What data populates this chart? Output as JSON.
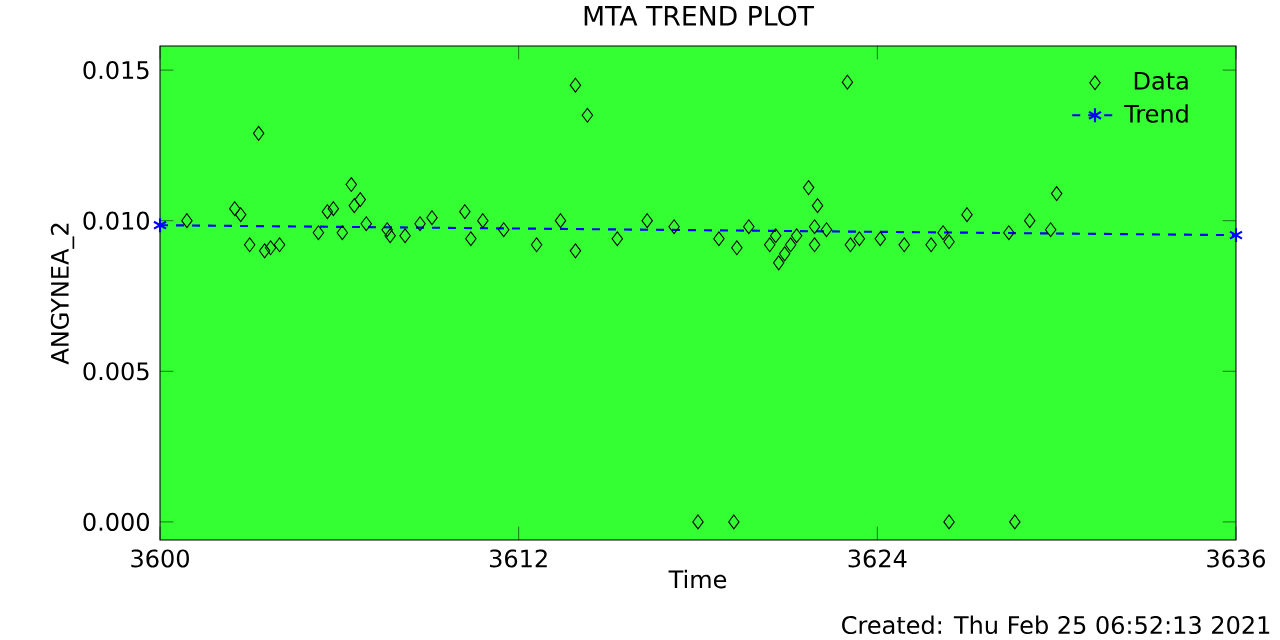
{
  "chart_data": {
    "type": "scatter",
    "title": "MTA TREND PLOT",
    "xlabel": "Time",
    "ylabel": "ANGYNEA_2",
    "annotations": [
      "Created: Thu Feb 25 06:52:13 2021"
    ],
    "xlim": [
      3600,
      3636
    ],
    "xticks": [
      3600,
      3612,
      3624,
      3636
    ],
    "ylim": [
      -0.0006,
      0.0158
    ],
    "yticks": [
      {
        "value": 0,
        "label": "0.000"
      },
      {
        "value": 0.005,
        "label": "0.005"
      },
      {
        "value": 0.01,
        "label": "0.010"
      },
      {
        "value": 0.015,
        "label": "0.015"
      }
    ],
    "legend": "top right",
    "series": [
      {
        "name": "Data",
        "marker": "diamond",
        "color": "#000000",
        "x": [
          3600.9,
          3602.5,
          3602.7,
          3603.0,
          3603.3,
          3603.5,
          3603.7,
          3604.0,
          3605.3,
          3605.6,
          3605.8,
          3606.1,
          3606.4,
          3606.5,
          3606.7,
          3606.9,
          3607.6,
          3607.7,
          3608.2,
          3608.7,
          3609.1,
          3610.2,
          3610.4,
          3610.8,
          3611.5,
          3612.6,
          3613.4,
          3613.9,
          3613.9,
          3614.3,
          3615.3,
          3616.3,
          3617.2,
          3618.0,
          3618.7,
          3619.2,
          3619.3,
          3619.7,
          3620.4,
          3620.6,
          3620.7,
          3620.9,
          3621.1,
          3621.3,
          3621.7,
          3622.0,
          3621.9,
          3621.9,
          3622.3,
          3623.0,
          3623.1,
          3623.4,
          3624.1,
          3624.9,
          3625.8,
          3626.2,
          3626.4,
          3626.4,
          3627.0,
          3628.4,
          3628.6,
          3629.1,
          3629.8,
          3630.0
        ],
        "values": [
          0.01,
          0.0104,
          0.0102,
          0.0092,
          0.0129,
          0.009,
          0.0091,
          0.0092,
          0.0096,
          0.0103,
          0.0104,
          0.0096,
          0.0112,
          0.0105,
          0.0107,
          0.0099,
          0.0097,
          0.0095,
          0.0095,
          0.0099,
          0.0101,
          0.0103,
          0.0094,
          0.01,
          0.0097,
          0.0092,
          0.01,
          0.009,
          0.0145,
          0.0135,
          0.0094,
          0.01,
          0.0098,
          0.0,
          0.0094,
          0.0,
          0.0091,
          0.0098,
          0.0092,
          0.0095,
          0.0086,
          0.0089,
          0.0092,
          0.0095,
          0.0111,
          0.0105,
          0.0098,
          0.0092,
          0.0097,
          0.0146,
          0.0092,
          0.0094,
          0.0094,
          0.0092,
          0.0092,
          0.0096,
          0.0093,
          0.0,
          0.0102,
          0.0096,
          0.0,
          0.01,
          0.0097,
          0.0109
        ]
      },
      {
        "name": "Trend",
        "type": "line",
        "marker": "cross",
        "line_style": "dashed",
        "color": "#0000ff",
        "x": [
          3600,
          3636
        ],
        "values": [
          0.00985,
          0.00952
        ]
      }
    ]
  }
}
